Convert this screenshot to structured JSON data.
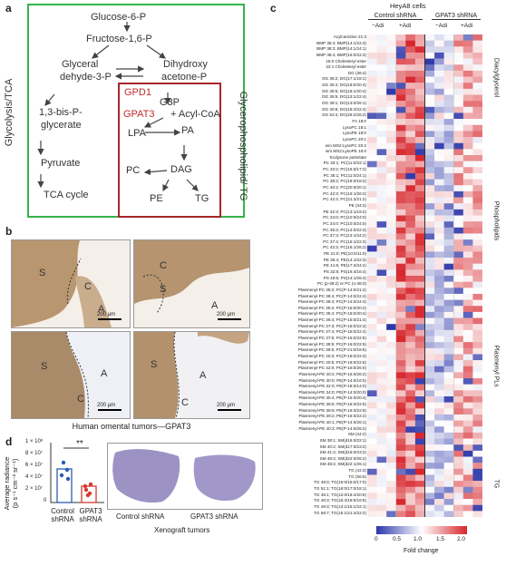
{
  "panel_a": {
    "label": "a",
    "left_region_label": "Glycolysis/TCA",
    "right_region_label": "Glycerophospholipid/ TG",
    "nodes": {
      "g6p": "Glucose-6-P",
      "f16p": "Fructose-1,6-P",
      "gly3p_l1": "Glyceral",
      "gly3p_l2": "dehyde-3-P",
      "dhap_l1": "Dihydroxy",
      "dhap_l2": "acetone-P",
      "bpg_l1": "1,3-bis-P-",
      "bpg_l2": "glycerate",
      "pyruvate": "Pyruvate",
      "tca": "TCA cycle",
      "gpd1": "GPD1",
      "g3p": "G3P",
      "gpat3": "GPAT3",
      "acyl": "+ Acyl-CoA",
      "lpa": "LPA",
      "pa": "PA",
      "pc": "PC",
      "dag": "DAG",
      "pe": "PE",
      "tg": "TG"
    }
  },
  "panel_b": {
    "label": "b",
    "caption": "Human omental tumors—GPAT3",
    "scale": "200 μm",
    "tile_letters": [
      [
        "S",
        "C",
        "A"
      ],
      [
        "C",
        "S",
        "A"
      ],
      [
        "S",
        "A",
        "C"
      ],
      [
        "S",
        "A",
        "C"
      ]
    ]
  },
  "panel_d": {
    "label": "d",
    "ylabel_l1": "Average radiance",
    "ylabel_l2": "(p s⁻¹ cm⁻² sr⁻¹)",
    "yticks": [
      "1 × 10⁸",
      "8 × 10⁷",
      "6 × 10⁷",
      "4 × 10⁷",
      "2 × 10⁷",
      "0"
    ],
    "significance": "**",
    "xcat_1_l1": "Control",
    "xcat_1_l2": "shRNA",
    "xcat_2_l1": "GPAT3",
    "xcat_2_l2": "shRNA",
    "xeno_left": "Control shRNA",
    "xeno_right": "GPAT3 shRNA",
    "xeno_caption": "Xenograft tumors"
  },
  "panel_c": {
    "label": "c",
    "title": "HeyA8 cells",
    "group_1": "Control shRNA",
    "group_2": "GPAT3 shRNA",
    "sub_minus": "−Adi",
    "sub_plus": "+Adi",
    "classes": [
      "Diacylglycerol",
      "Phospholipids",
      "Plasmenyl PLs",
      "TG"
    ],
    "colorbar_label": "Fold change",
    "colorbar_ticks": [
      "0",
      "0.5",
      "1.0",
      "1.5",
      "2.0"
    ],
    "colors": {
      "low": "#2b35a8",
      "mid": "#ffffff",
      "high": "#d7262c"
    },
    "rows": [
      "Acylcarnitine 21:3",
      "BMP 36:4; BMP(14:1/22:3)",
      "BMP 38:2; BMP(14:1/24:1)",
      "BMP 38:4; BMP(16:0/22:3)",
      "15:0 Cholesteryl ester",
      "22:1 Cholesteryl ester",
      "DG (36:4)",
      "DG 35:2; DG(17:1/18:1)",
      "DG 36:4; DG(18:0/20:4)",
      "DG 38:5; DG(18:1/20:4)",
      "DG 35:5; DG(13:1/22:4)",
      "DG 39:1; DG(13:0/26:1)",
      "DG 40:8; DG(18:4/22:4)",
      "DG 52:4; DG(26:2/26:2)",
      "FA 18:0",
      "LysoPC 18:1",
      "LysoPE 18:0",
      "LysoPC 20:1",
      "w/o MS2:LysoPC 20:2",
      "w/o MS2:LysoPE 16:0",
      "Ecdysone palmitate",
      "PC 33:1; PC(11:0/22:1)",
      "PC 33:2; PC(16:0/17:2)",
      "PC 35:1; PC(11:0/24:1)",
      "PC 38:2; PC(18:0/18:2)",
      "PC 40:2; PC(20:0/20:1)",
      "PC 42:3; PC(16:1/26:2)",
      "PC 42:4; PC(21:2/21:2)",
      "PE (34:2)",
      "PE 32:3; PC(13:1/19:2)",
      "PC 34:0; PC(10:0/24:0)",
      "PC 34:0; PC(10:0/24:0)",
      "PC 35:3; PC(13:0/22:3)",
      "PC 37:3; PC(13:1/24:2)",
      "PC 37:4; PC(15:1/22:3)",
      "PC 42:3; PC(16:1/26:2)",
      "PE 21:0; PE(10:0/11:0)",
      "PE 36:4; PE(14:1/22:3)",
      "PE 41:6; PE(17:2/24:4)",
      "PS 32:8; PS(16:4/16:4)",
      "PS 40:5; PS(14:1/26:4)",
      "PC (p-38:2) or PC (o-38:3)",
      "Plasmenyl-PC 35:2; PC(P-14:0/21:2)",
      "Plasmenyl-PC 36:4; PC(P-14:0/22:4)",
      "Plasmenyl-PC 38:4; PC(P-14:0/24:4)",
      "Plasmenyl-PC 35:2; PC(P-15:0/20:2)",
      "Plasmenyl-PC 35:4; PC(P-15:0/20:4)",
      "Plasmenyl-PC 36:4; PC(P-15:0/21:4)",
      "Plasmenyl-PC 37:3; PC(P-15:0/22:3)",
      "Plasmenyl-PC 37:4; PC(P-15:0/22:4)",
      "Plasmenyl-PC 37:5; PC(P-15:0/22:5)",
      "Plasmenyl-PC 38:5; PC(P-16:0/22:5)",
      "Plasmenyl-PC 39:5; PC(P-21:0/18:5)",
      "Plasmenyl-PC 40:3; PC(P-18:0/22:3)",
      "Plasmenyl-PC 40:5; PC(P-18:0/22:5)",
      "Plasmenyl-PC 42:0; PC(P-16:0/26:0)",
      "Plasmenyl-PE 40:2; PE(P-16:0/26:2)",
      "Plasmenyl-PE 30:0; PE(P-14:0/16:0)",
      "Plasmenyl-PE 32:0; PE(P-18:0/14:0)",
      "Plasmenyl-PE 34:0; PE(P-14:0/20:0)",
      "Plasmenyl-PE 35:4; PE(P-15:0/20:4)",
      "Plasmenyl-PE 38:5; PE(P-16:0/22:5)",
      "Plasmenyl-PE 38:6; PE(P-16:0/22:6)",
      "Plasmenyl-PE 39:2; PE(P-16:0/22:2)",
      "Plasmenyl-PE 40:1; PE(P-14:0/26:1)",
      "Plasmenyl-PE 40:2; PE(P-14:0/26:2)",
      "SM (44:2)",
      "SM 38:1; SM(d16:0/22:1)",
      "SM 40:2; SM(d17:0/23:2)",
      "SM 41:2; SM(d19:0/23:2)",
      "SM 48:2; SM(d22:0/26:2)",
      "SM 48:2; SM(d22:1/26:1)",
      "TG (42:3)",
      "TG (56:6)",
      "TG 49:0; TG(16:0/16:0/17:0)",
      "TG 51:1; TG(16:0/17:0/18:1)",
      "TG 48:1; TG(12:0/16:4/20:6)",
      "TG 48:3; TG(16:4/16:5/16:5)",
      "TG 49:3; TG(13:1/15:1/22:1)",
      "TG 58:7; TG(15:1/21:4/22:2)"
    ]
  }
}
